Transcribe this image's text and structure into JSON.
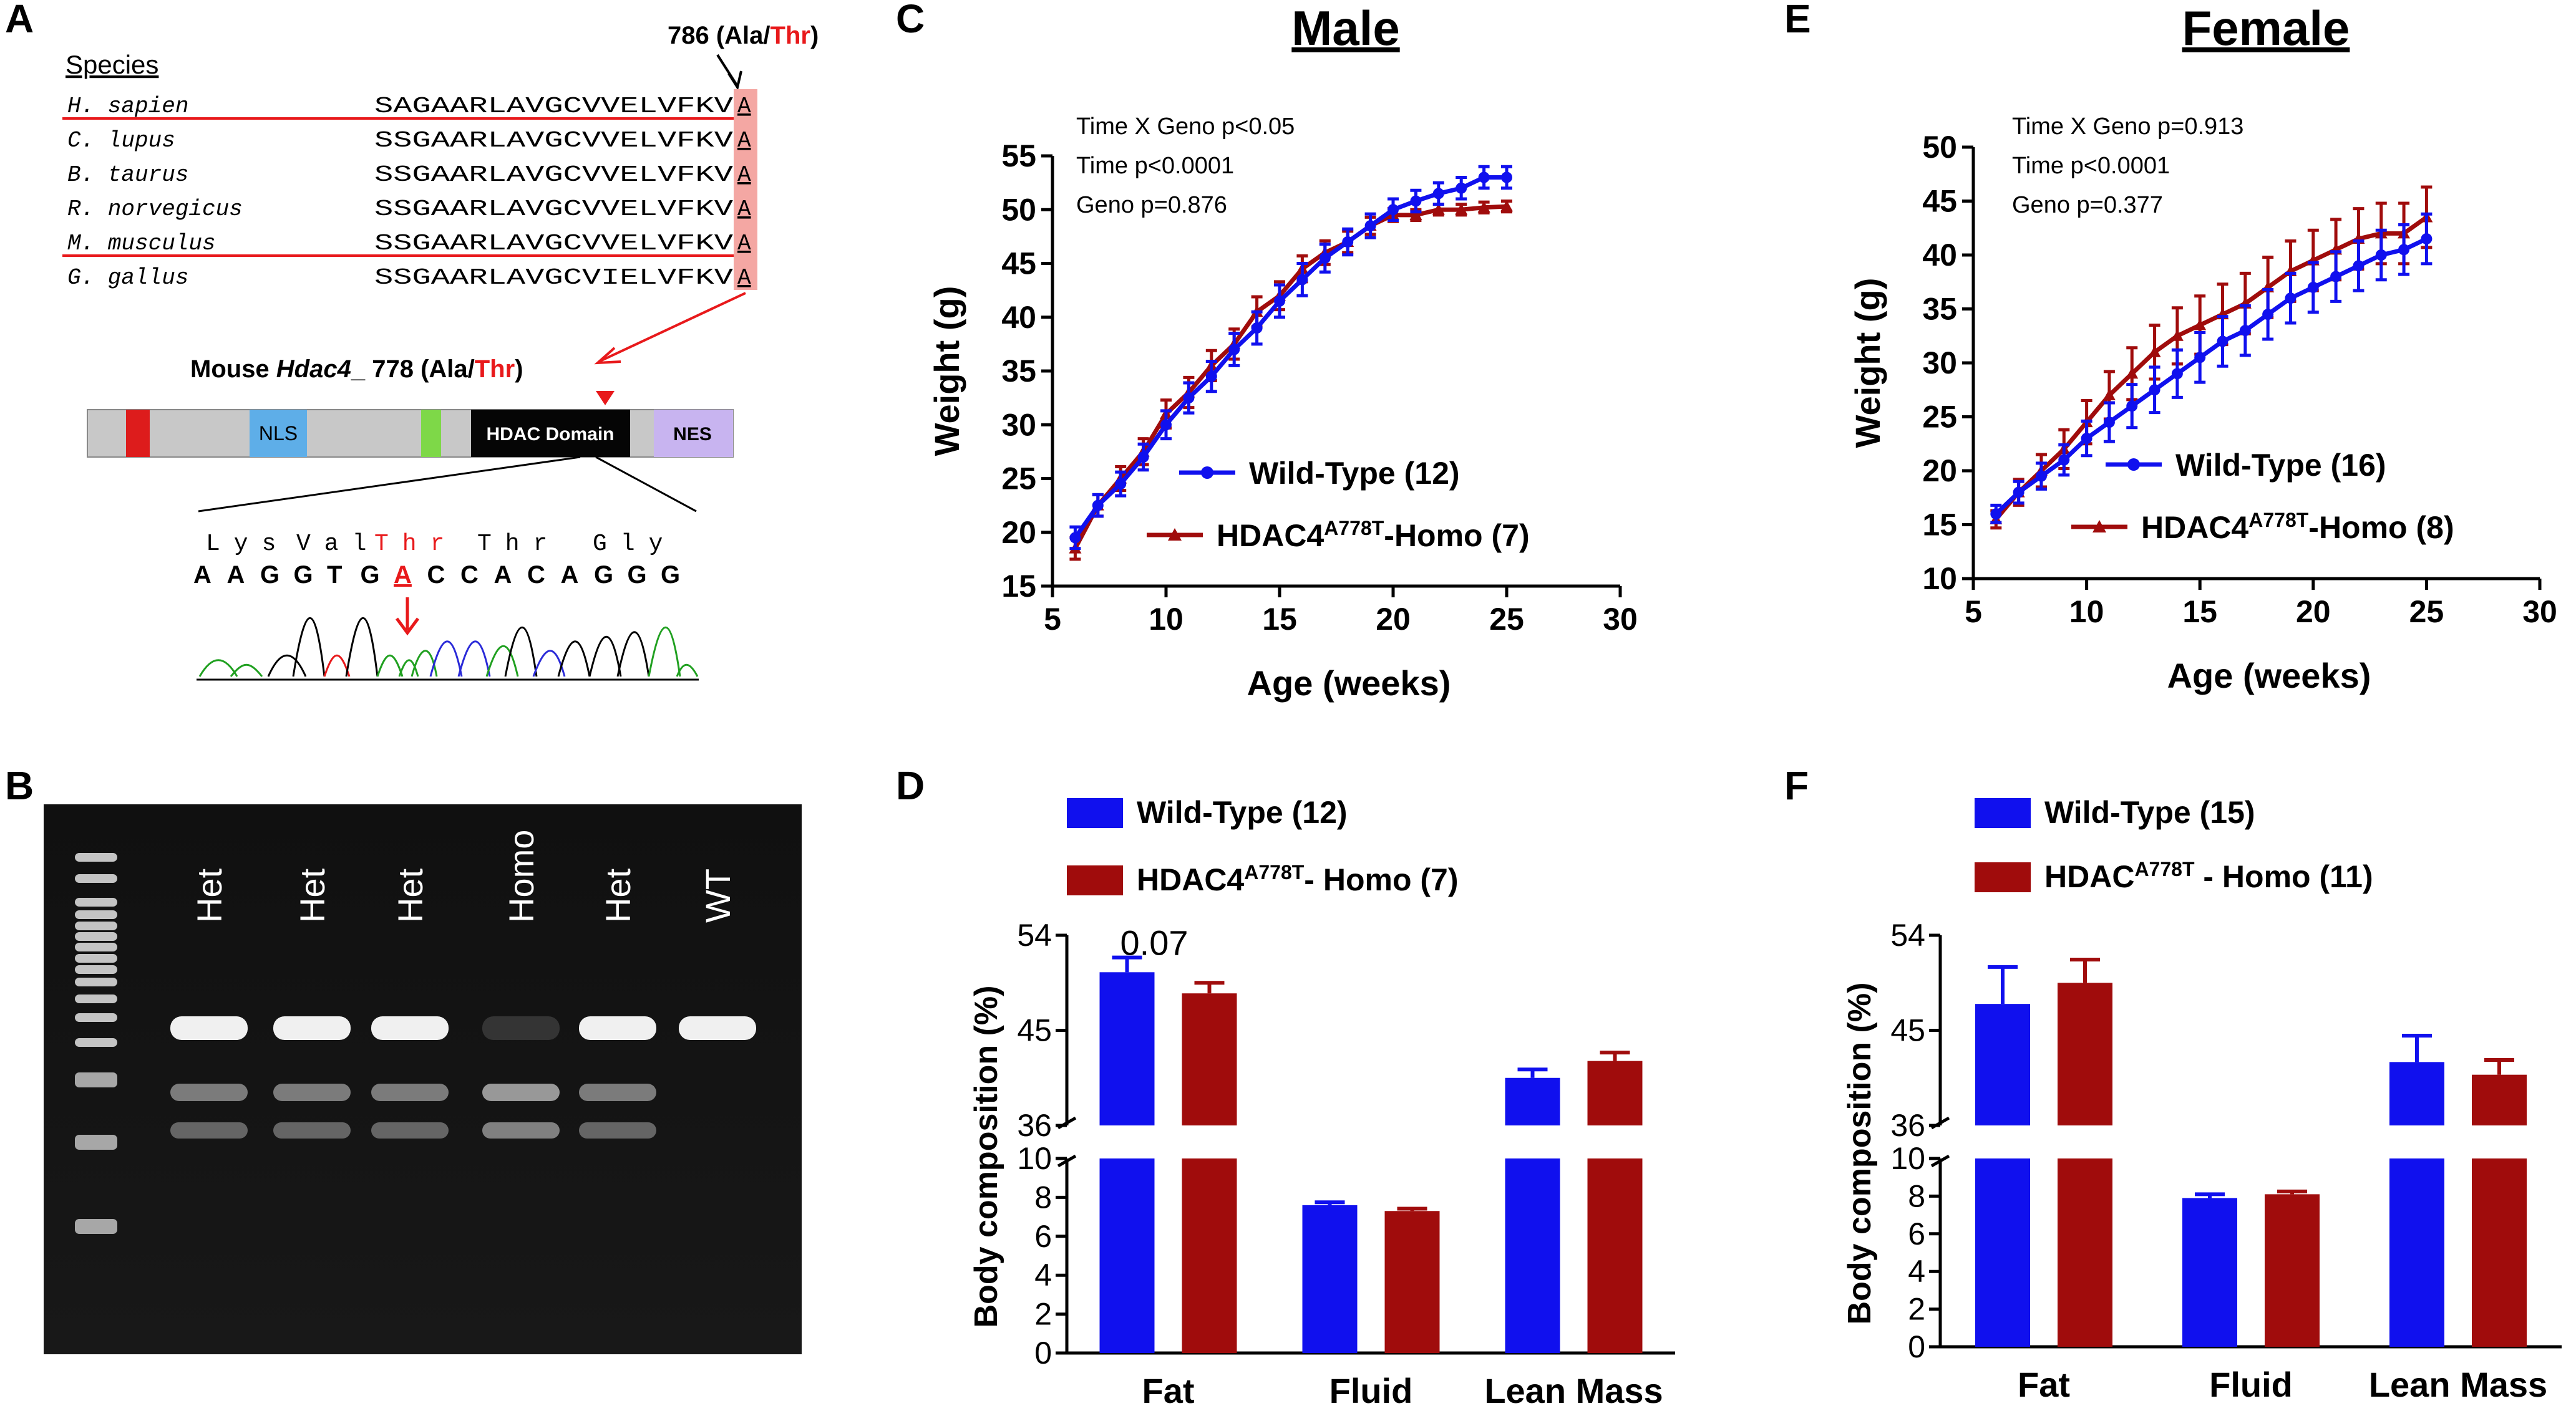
{
  "panel_labels": [
    "A",
    "B",
    "C",
    "D",
    "E",
    "F"
  ],
  "panelA": {
    "mutation_label_prefix": "786 (Ala/",
    "mutation_label_thr": "Thr",
    "mutation_label_suffix": ")",
    "species_header": "Species",
    "species": [
      "H. sapien",
      "C. lupus",
      "B. taurus",
      "R. norvegicus",
      "M. musculus",
      "G. gallus"
    ],
    "sequences": [
      "SAGAARLAVGCVVELVFKV",
      "SSGAARLAVGCVVELVFKV",
      "SSGAARLAVGCVVELVFKV",
      "SSGAARLAVGCVVELVFKV",
      "SSGAARLAVGCVVELVFKV",
      "SSGAARLAVGCVIELVFKV"
    ],
    "aligned_residue": "A",
    "mouse_label_prefix": "Mouse ",
    "mouse_label_gene": "Hdac4",
    "mouse_label_mid": "_ 778 (Ala/",
    "mouse_label_thr": "Thr",
    "mouse_label_suffix": ")",
    "domains": {
      "nls": "NLS",
      "hdac": "HDAC Domain",
      "nes": "NES"
    },
    "aa_row": [
      "Lys",
      "Val",
      "Thr",
      "Thr",
      "Gly"
    ],
    "nt_row": [
      "A",
      "A",
      "G",
      "G",
      "T",
      "G",
      "A",
      "C",
      "C",
      "A",
      "C",
      "A",
      "G",
      "G",
      "G"
    ]
  },
  "panelB": {
    "lane_labels": [
      "Het",
      "Het",
      "Het",
      "Homo",
      "Het",
      "WT"
    ]
  },
  "colors": {
    "wt": "#1010ee",
    "homo": "#a00c0c",
    "highlight_red": "#e8191b",
    "alignment_pink": "#f4a7a3"
  },
  "chart_data": [
    {
      "id": "C",
      "type": "line",
      "title": "Male",
      "xlabel": "Age (weeks)",
      "ylabel": "Weight (g)",
      "xlim": [
        5,
        30
      ],
      "ylim": [
        15,
        55
      ],
      "xticks": [
        "5",
        "10",
        "15",
        "20",
        "25",
        "30"
      ],
      "yticks": [
        "15",
        "20",
        "25",
        "30",
        "35",
        "40",
        "45",
        "50",
        "55"
      ],
      "stats": [
        "Time X Geno p<0.05",
        "Time p<0.0001",
        "Geno p=0.876"
      ],
      "x": [
        6,
        7,
        8,
        9,
        10,
        11,
        12,
        13,
        14,
        15,
        16,
        17,
        18,
        19,
        20,
        21,
        22,
        23,
        24,
        25
      ],
      "series": [
        {
          "name": "Wild-Type (12)",
          "name_sup": "",
          "name_suffix": "",
          "color": "wt",
          "marker": "circle",
          "values": [
            19.5,
            22.5,
            24.5,
            27,
            30,
            32.5,
            34.5,
            37,
            39,
            41.5,
            43.5,
            45.5,
            47,
            48.5,
            50,
            50.8,
            51.5,
            52,
            53,
            53
          ],
          "errors": [
            1,
            1,
            1.1,
            1.2,
            1.3,
            1.4,
            1.4,
            1.5,
            1.5,
            1.5,
            1.5,
            1.3,
            1.2,
            1.1,
            1,
            1,
            1,
            1,
            1,
            1
          ]
        },
        {
          "name": "HDAC4",
          "name_sup": "A778T",
          "name_suffix": "-Homo (7)",
          "color": "homo",
          "marker": "triangle",
          "values": [
            18.5,
            22.5,
            25,
            27.5,
            31,
            33,
            35.5,
            37.5,
            40.5,
            42,
            44.5,
            46,
            47,
            48.5,
            49.5,
            49.5,
            50,
            50,
            50.2,
            50.3
          ],
          "errors": [
            1,
            1,
            1.1,
            1.2,
            1.3,
            1.4,
            1.4,
            1.4,
            1.4,
            1.3,
            1.2,
            1.1,
            1,
            0.8,
            0.6,
            0.5,
            0.5,
            0.5,
            0.5,
            0.5
          ]
        }
      ]
    },
    {
      "id": "E",
      "type": "line",
      "title": "Female",
      "xlabel": "Age (weeks)",
      "ylabel": "Weight (g)",
      "xlim": [
        5,
        30
      ],
      "ylim": [
        10,
        50
      ],
      "xticks": [
        "5",
        "10",
        "15",
        "20",
        "25",
        "30"
      ],
      "yticks": [
        "10",
        "15",
        "20",
        "25",
        "30",
        "35",
        "40",
        "45",
        "50"
      ],
      "stats": [
        "Time X Geno p=0.913",
        "Time p<0.0001",
        "Geno p=0.377"
      ],
      "x": [
        6,
        7,
        8,
        9,
        10,
        11,
        12,
        13,
        14,
        15,
        16,
        17,
        18,
        19,
        20,
        21,
        22,
        23,
        24,
        25
      ],
      "series": [
        {
          "name": "Wild-Type (16)",
          "name_sup": "",
          "name_suffix": "",
          "color": "wt",
          "marker": "circle",
          "values": [
            16,
            18,
            19.5,
            21,
            23,
            24.5,
            26,
            27.5,
            29,
            30.5,
            32,
            33,
            34.5,
            36,
            37,
            38,
            39,
            40,
            40.5,
            41.5
          ],
          "errors": [
            0.8,
            1,
            1.2,
            1.4,
            1.6,
            1.8,
            2,
            2.1,
            2.2,
            2.3,
            2.3,
            2.3,
            2.3,
            2.3,
            2.3,
            2.3,
            2.3,
            2.3,
            2.3,
            2.3
          ]
        },
        {
          "name": "HDAC4",
          "name_sup": "A778T",
          "name_suffix": "-Homo (8)",
          "color": "homo",
          "marker": "triangle",
          "values": [
            15.5,
            18,
            20,
            22,
            24.5,
            27,
            29,
            31,
            32.5,
            33.5,
            34.5,
            35.5,
            37,
            38.5,
            39.5,
            40.5,
            41.5,
            42,
            42,
            43.5
          ],
          "errors": [
            0.8,
            1.2,
            1.5,
            1.8,
            2,
            2.2,
            2.4,
            2.5,
            2.6,
            2.7,
            2.8,
            2.8,
            2.8,
            2.8,
            2.8,
            2.8,
            2.8,
            2.8,
            2.8,
            2.8
          ]
        }
      ]
    },
    {
      "id": "D",
      "type": "bar",
      "xlabel": "",
      "ylabel": "Body composition (%)",
      "categories": [
        "Fat",
        "Fluid",
        "Lean Mass"
      ],
      "axis_break": {
        "lower": [
          0,
          10
        ],
        "upper": [
          36,
          54
        ]
      },
      "yticks_lower": [
        "0",
        "2",
        "4",
        "6",
        "8",
        "10"
      ],
      "yticks_upper": [
        "36",
        "45",
        "54"
      ],
      "annotation": "0.07",
      "series": [
        {
          "name": "Wild-Type (12)",
          "name_sup": "",
          "name_suffix": "",
          "color": "wt",
          "values": [
            50.5,
            7.6,
            40.5
          ],
          "errors": [
            1.4,
            0.15,
            0.8
          ]
        },
        {
          "name": "HDAC4",
          "name_sup": "A778T",
          "name_suffix": "- Homo (7)",
          "color": "homo",
          "values": [
            48.5,
            7.3,
            42.1
          ],
          "errors": [
            1,
            0.12,
            0.8
          ]
        }
      ]
    },
    {
      "id": "F",
      "type": "bar",
      "xlabel": "",
      "ylabel": "Body composition (%)",
      "categories": [
        "Fat",
        "Fluid",
        "Lean Mass"
      ],
      "axis_break": {
        "lower": [
          0,
          10
        ],
        "upper": [
          36,
          54
        ]
      },
      "yticks_lower": [
        "0",
        "2",
        "4",
        "6",
        "8",
        "10"
      ],
      "yticks_upper": [
        "36",
        "45",
        "54"
      ],
      "annotation": "",
      "series": [
        {
          "name": "Wild-Type (15)",
          "name_sup": "",
          "name_suffix": "",
          "color": "wt",
          "values": [
            47.5,
            7.9,
            42
          ],
          "errors": [
            3.5,
            0.2,
            2.5
          ]
        },
        {
          "name": "HDAC",
          "name_sup": "A778T",
          "name_suffix": " - Homo (11)",
          "color": "homo",
          "values": [
            49.5,
            8.1,
            40.8
          ],
          "errors": [
            2.2,
            0.15,
            1.4
          ]
        }
      ]
    }
  ]
}
